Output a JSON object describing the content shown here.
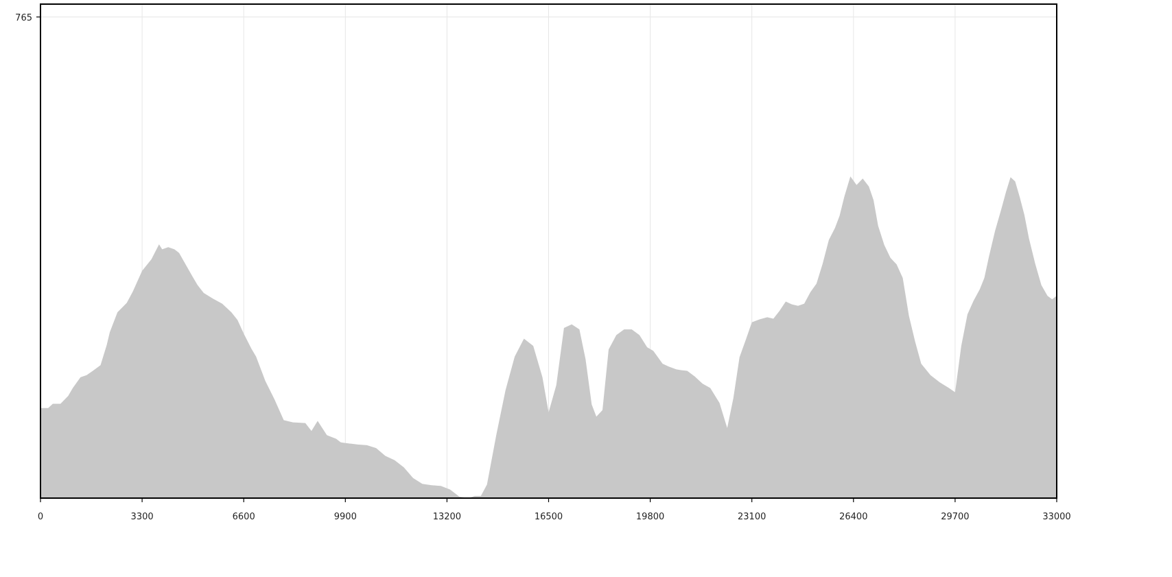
{
  "chart_data": {
    "type": "area",
    "title": "",
    "xlabel": "",
    "ylabel": "",
    "xlim": [
      0,
      33000
    ],
    "ylim": [
      92,
      783
    ],
    "grid": true,
    "x_ticks": [
      0,
      3300,
      6600,
      9900,
      13200,
      16500,
      19800,
      23100,
      26400,
      29700,
      33000
    ],
    "x_tick_labels": [
      "0",
      "3300",
      "6600",
      "9900",
      "13200",
      "16500",
      "19800",
      "23100",
      "26400",
      "29700",
      "33000"
    ],
    "y_ticks": [
      765
    ],
    "y_tick_labels": [
      "765"
    ],
    "colors": {
      "fill": "#c8c8c8",
      "grid": "#e6e6e6",
      "axis": "#000000",
      "background": "#ffffff"
    },
    "series": [
      {
        "x": [
          0,
          250,
          400,
          650,
          900,
          1050,
          1300,
          1500,
          1700,
          1950,
          2150,
          2250,
          2500,
          2800,
          3000,
          3300,
          3600,
          3850,
          3950,
          4150,
          4350,
          4500,
          4750,
          4950,
          5100,
          5300,
          5600,
          5900,
          6200,
          6400,
          6600,
          6850,
          7000,
          7300,
          7600,
          7900,
          8200,
          8600,
          8800,
          9000,
          9300,
          9600,
          9750,
          9900,
          10100,
          10300,
          10600,
          10900,
          11200,
          11500,
          11800,
          12100,
          12400,
          12700,
          13000,
          13300,
          13600,
          13900,
          14100,
          14300,
          14500,
          14800,
          15100,
          15400,
          15700,
          16000,
          16300,
          16500,
          16750,
          17000,
          17250,
          17500,
          17700,
          17900,
          18050,
          18250,
          18450,
          18700,
          18950,
          19200,
          19450,
          19700,
          19900,
          20200,
          20400,
          20650,
          20800,
          21000,
          21250,
          21500,
          21750,
          22050,
          22300,
          22500,
          22700,
          22900,
          23100,
          23350,
          23600,
          23800,
          24000,
          24200,
          24400,
          24600,
          24800,
          25000,
          25200,
          25400,
          25600,
          25800,
          25950,
          26100,
          26300,
          26500,
          26700,
          26900,
          27050,
          27200,
          27400,
          27600,
          27800,
          28000,
          28200,
          28400,
          28600,
          28900,
          29200,
          29500,
          29700,
          29900,
          30100,
          30300,
          30500,
          30650,
          30800,
          31000,
          31200,
          31350,
          31500,
          31650,
          31800,
          31950,
          32100,
          32300,
          32500,
          32700,
          32850,
          33000,
          33100
        ],
        "values": [
          218,
          218,
          224,
          224,
          235,
          246,
          261,
          264,
          270,
          278,
          306,
          324,
          352,
          365,
          381,
          410,
          426,
          447,
          440,
          443,
          440,
          435,
          416,
          401,
          390,
          379,
          371,
          364,
          352,
          341,
          322,
          301,
          290,
          256,
          230,
          201,
          198,
          197,
          186,
          200,
          180,
          175,
          170,
          169,
          168,
          167,
          166,
          162,
          151,
          145,
          135,
          120,
          112,
          110,
          109,
          104,
          94,
          92,
          95,
          95,
          111,
          180,
          243,
          290,
          315,
          305,
          261,
          212,
          250,
          330,
          335,
          328,
          286,
          223,
          206,
          215,
          300,
          320,
          328,
          328,
          320,
          303,
          298,
          280,
          276,
          272,
          271,
          270,
          262,
          252,
          246,
          225,
          190,
          232,
          289,
          313,
          338,
          342,
          345,
          343,
          354,
          367,
          363,
          361,
          364,
          380,
          392,
          420,
          453,
          470,
          487,
          513,
          542,
          530,
          539,
          528,
          509,
          473,
          446,
          428,
          419,
          400,
          347,
          311,
          280,
          264,
          254,
          246,
          240,
          305,
          349,
          368,
          384,
          400,
          430,
          466,
          496,
          520,
          541,
          535,
          513,
          488,
          455,
          420,
          390,
          375,
          370,
          375,
          380
        ]
      }
    ]
  }
}
